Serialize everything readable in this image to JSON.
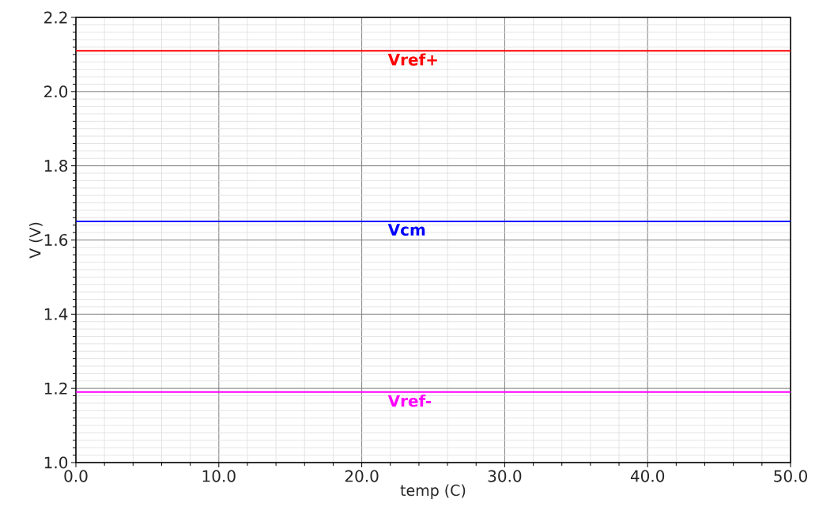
{
  "chart_data": {
    "type": "line",
    "xlabel": "temp (C)",
    "ylabel": "V (V)",
    "x": [
      0,
      50
    ],
    "series": [
      {
        "name": "Vref+",
        "color": "#ff0000",
        "values": [
          2.11,
          2.11
        ]
      },
      {
        "name": "Vcm",
        "color": "#0000ff",
        "values": [
          1.65,
          1.65
        ]
      },
      {
        "name": "Vref-",
        "color": "#ff00ff",
        "values": [
          1.19,
          1.19
        ]
      }
    ],
    "xlim": [
      0,
      50
    ],
    "xticks": [
      {
        "value": 0,
        "label": "0.0"
      },
      {
        "value": 10,
        "label": "10.0"
      },
      {
        "value": 20,
        "label": "20.0"
      },
      {
        "value": 30,
        "label": "30.0"
      },
      {
        "value": 40,
        "label": "40.0"
      },
      {
        "value": 50,
        "label": "50.0"
      }
    ],
    "ylim": [
      1.0,
      2.2
    ],
    "yticks": [
      {
        "value": 1.0,
        "label": "1.0"
      },
      1.2,
      1.4,
      1.6,
      1.8,
      {
        "value": 2.0,
        "label": "2.0"
      },
      2.2
    ],
    "grid": true,
    "legend": false,
    "marker": "none",
    "line_style": "solid"
  }
}
